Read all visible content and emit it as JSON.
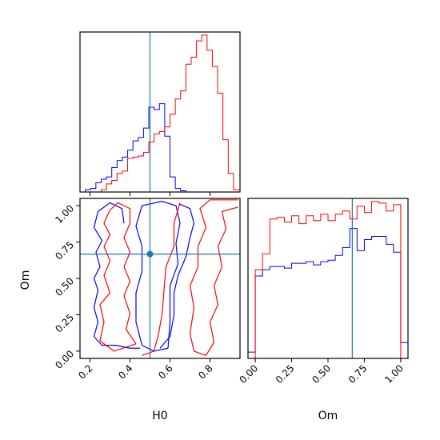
{
  "colors": {
    "model_a": "#0000ff",
    "model_b": "#ff0000",
    "truth": "#1f77b4",
    "axes": "#000000"
  },
  "axis_titles": {
    "h0": "H0",
    "om": "Om"
  },
  "chart_data": [
    {
      "type": "histogram",
      "panel": "H0 marginal",
      "xlim": [
        0.15,
        0.95
      ],
      "xticks": [
        "0.2",
        "0.4",
        "0.6",
        "0.8"
      ],
      "truth_x": 0.5,
      "bin_edges": [
        0.15,
        0.1765,
        0.2029,
        0.2294,
        0.2559,
        0.2824,
        0.3088,
        0.3353,
        0.3618,
        0.3882,
        0.4147,
        0.4412,
        0.4676,
        0.4941,
        0.5206,
        0.5471,
        0.5735,
        0.6,
        0.6265,
        0.6529,
        0.6794,
        0.7059,
        0.7324,
        0.7588,
        0.7853,
        0.8118,
        0.8382,
        0.8647,
        0.8912,
        0.9176,
        0.95
      ],
      "series": [
        {
          "color": "blue",
          "counts": [
            0,
            2,
            3,
            8,
            11,
            13,
            21,
            27,
            30,
            36,
            44,
            47,
            55,
            73,
            71,
            76,
            48,
            13,
            3,
            1,
            0,
            0,
            0,
            0,
            0,
            0,
            0,
            0,
            0,
            0
          ]
        },
        {
          "color": "red",
          "counts": [
            0,
            0,
            0,
            0,
            2,
            7,
            10,
            16,
            18,
            29,
            30,
            31,
            34,
            43,
            50,
            52,
            56,
            67,
            80,
            87,
            110,
            116,
            130,
            135,
            122,
            108,
            85,
            45,
            16,
            2
          ]
        }
      ]
    },
    {
      "type": "contour",
      "panel": "H0 vs Om",
      "xlim": [
        0.15,
        0.95
      ],
      "ylim": [
        -0.05,
        1.05
      ],
      "xticks": [
        "0.2",
        "0.4",
        "0.6",
        "0.8"
      ],
      "yticks": [
        "0.00",
        "0.25",
        "0.50",
        "0.75",
        "1.00"
      ],
      "truth": {
        "x": 0.5,
        "y": 0.667
      },
      "series": [
        {
          "color": "blue",
          "contours": [
            [
              [
                0.59,
                0.02
              ],
              [
                0.52,
                0.0
              ],
              [
                0.46,
                0.04
              ],
              [
                0.43,
                0.2
              ],
              [
                0.43,
                0.4
              ],
              [
                0.46,
                0.55
              ],
              [
                0.46,
                0.72
              ],
              [
                0.43,
                0.86
              ],
              [
                0.46,
                1.0
              ],
              [
                0.56,
                1.03
              ],
              [
                0.63,
                1.0
              ],
              [
                0.65,
                0.88
              ],
              [
                0.63,
                0.74
              ],
              [
                0.64,
                0.6
              ],
              [
                0.6,
                0.45
              ],
              [
                0.6,
                0.2
              ],
              [
                0.59,
                0.02
              ]
            ],
            [
              [
                0.45,
                0.02
              ],
              [
                0.4,
                0.02
              ],
              [
                0.33,
                0.04
              ],
              [
                0.26,
                0.04
              ],
              [
                0.22,
                0.1
              ],
              [
                0.24,
                0.2
              ],
              [
                0.22,
                0.3
              ],
              [
                0.24,
                0.42
              ],
              [
                0.22,
                0.5
              ],
              [
                0.25,
                0.58
              ],
              [
                0.23,
                0.68
              ],
              [
                0.26,
                0.76
              ],
              [
                0.22,
                0.85
              ],
              [
                0.24,
                0.96
              ],
              [
                0.3,
                1.02
              ],
              [
                0.36,
                0.98
              ],
              [
                0.37,
                0.88
              ]
            ],
            [
              [
                0.65,
                1.01
              ],
              [
                0.7,
                0.98
              ],
              [
                0.72,
                0.88
              ],
              [
                0.7,
                0.78
              ],
              [
                0.68,
                0.65
              ],
              [
                0.64,
                0.52
              ],
              [
                0.62,
                0.4
              ],
              [
                0.62,
                0.25
              ],
              [
                0.6,
                0.1
              ],
              [
                0.55,
                0.02
              ]
            ]
          ]
        },
        {
          "color": "red",
          "contours": [
            [
              [
                0.43,
                0.05
              ],
              [
                0.32,
                0.0
              ],
              [
                0.25,
                0.07
              ],
              [
                0.27,
                0.2
              ],
              [
                0.25,
                0.32
              ],
              [
                0.3,
                0.4
              ],
              [
                0.27,
                0.52
              ],
              [
                0.3,
                0.62
              ],
              [
                0.27,
                0.72
              ],
              [
                0.3,
                0.8
              ],
              [
                0.27,
                0.88
              ],
              [
                0.3,
                0.97
              ],
              [
                0.34,
                1.02
              ],
              [
                0.4,
                0.98
              ],
              [
                0.4,
                0.88
              ],
              [
                0.37,
                0.78
              ],
              [
                0.4,
                0.68
              ],
              [
                0.37,
                0.58
              ],
              [
                0.4,
                0.48
              ],
              [
                0.37,
                0.38
              ],
              [
                0.4,
                0.26
              ],
              [
                0.38,
                0.15
              ],
              [
                0.43,
                0.05
              ]
            ],
            [
              [
                0.94,
                1.04
              ],
              [
                0.8,
                1.04
              ],
              [
                0.75,
                0.98
              ],
              [
                0.78,
                0.85
              ],
              [
                0.74,
                0.72
              ],
              [
                0.74,
                0.58
              ],
              [
                0.7,
                0.45
              ],
              [
                0.72,
                0.3
              ],
              [
                0.7,
                0.12
              ],
              [
                0.72,
                0.0
              ],
              [
                0.78,
                -0.03
              ],
              [
                0.82,
                0.06
              ],
              [
                0.8,
                0.2
              ],
              [
                0.84,
                0.32
              ],
              [
                0.82,
                0.45
              ],
              [
                0.86,
                0.58
              ],
              [
                0.84,
                0.72
              ],
              [
                0.88,
                0.84
              ],
              [
                0.86,
                0.96
              ],
              [
                0.94,
                0.99
              ]
            ],
            [
              [
                0.65,
                1.02
              ],
              [
                0.62,
                0.88
              ],
              [
                0.62,
                0.72
              ],
              [
                0.58,
                0.58
              ],
              [
                0.57,
                0.42
              ],
              [
                0.56,
                0.25
              ],
              [
                0.54,
                0.1
              ],
              [
                0.52,
                0.0
              ],
              [
                0.46,
                -0.03
              ]
            ]
          ]
        }
      ]
    },
    {
      "type": "histogram",
      "panel": "Om marginal",
      "xlim": [
        -0.05,
        1.05
      ],
      "xticks": [
        "0.00",
        "0.25",
        "0.50",
        "0.75",
        "1.00"
      ],
      "truth_x": 0.667,
      "bin_edges": [
        -0.05,
        0.0,
        0.05,
        0.1,
        0.15,
        0.2,
        0.25,
        0.3,
        0.35,
        0.4,
        0.45,
        0.5,
        0.55,
        0.6,
        0.65,
        0.7,
        0.75,
        0.8,
        0.85,
        0.9,
        0.95,
        1.0,
        1.05
      ],
      "series": [
        {
          "color": "blue",
          "counts": [
            4,
            52,
            56,
            58,
            58,
            57,
            60,
            60,
            61,
            59,
            61,
            62,
            65,
            70,
            82,
            68,
            75,
            77,
            77,
            72,
            67,
            10
          ]
        },
        {
          "color": "red",
          "counts": [
            0,
            56,
            66,
            88,
            89,
            86,
            90,
            85,
            90,
            87,
            91,
            87,
            91,
            93,
            88,
            96,
            92,
            99,
            98,
            93,
            97,
            0
          ]
        }
      ]
    }
  ]
}
